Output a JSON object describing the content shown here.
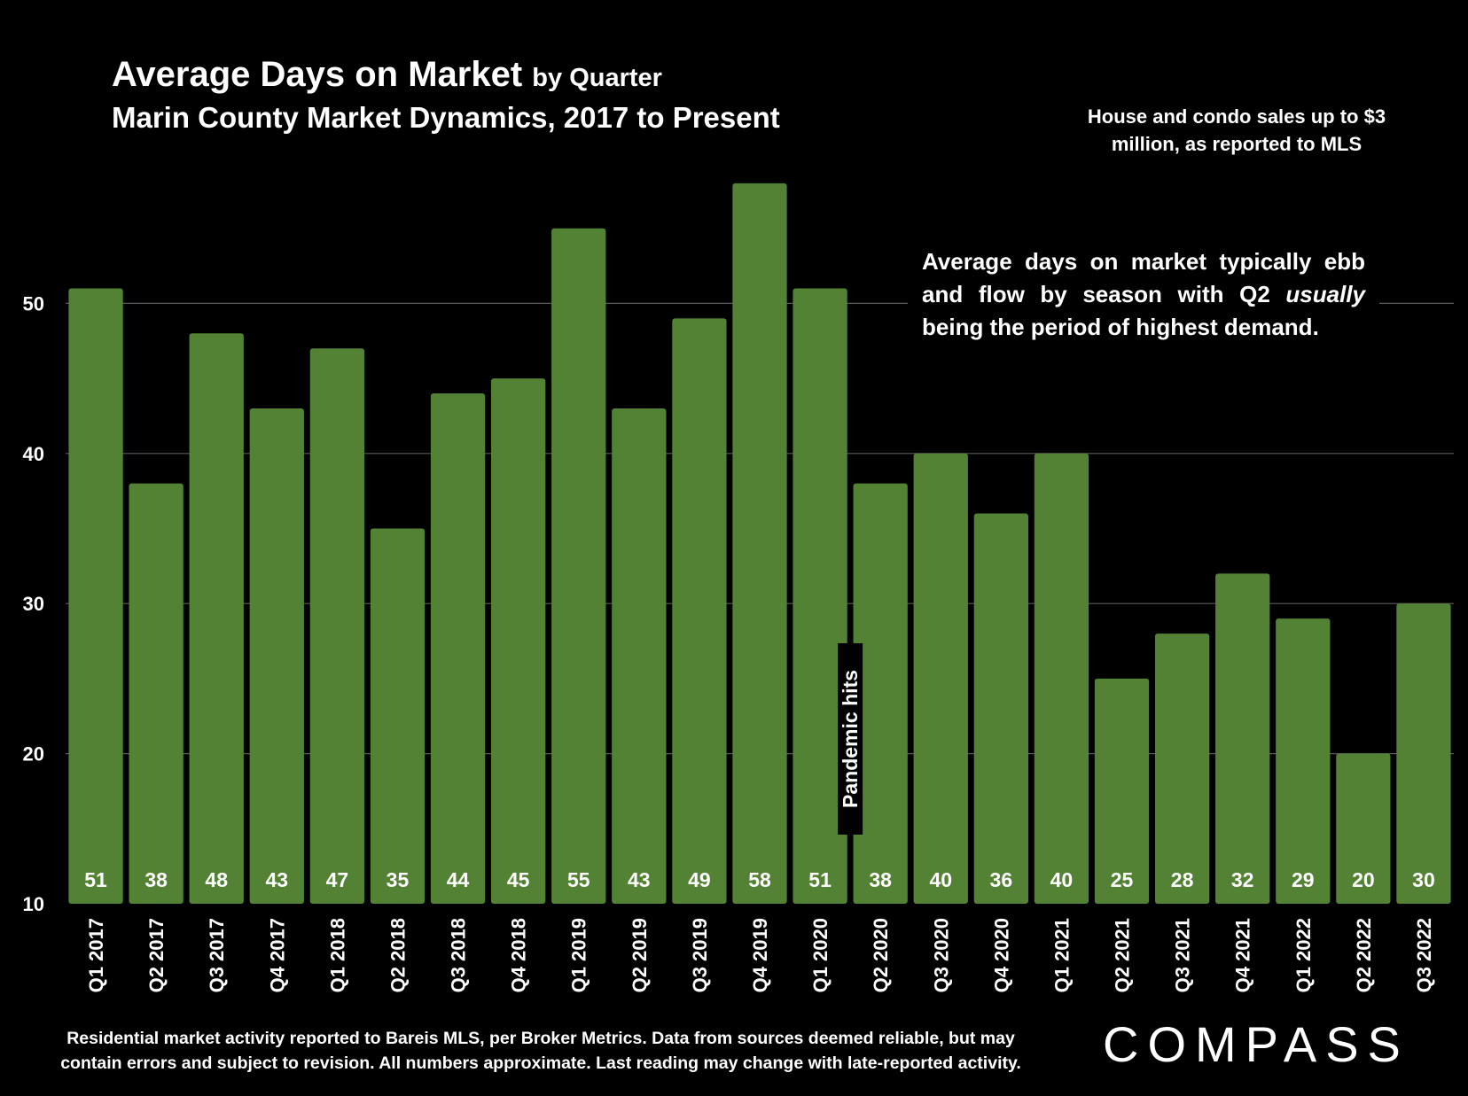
{
  "header": {
    "title_main": "Average Days on Market",
    "title_suffix": "by Quarter",
    "subtitle": "Marin County Market Dynamics, 2017 to Present",
    "scope_note": "House and condo sales up to $3 million, as reported to MLS"
  },
  "callout": {
    "text_before": "Average days on market typically ebb and flow by season with Q2 ",
    "text_emphasis": "usually",
    "text_after": " being the period of highest demand."
  },
  "footer": {
    "note": "Residential market activity reported to Bareis MLS, per Broker Metrics. Data from sources deemed reliable, but may contain errors and subject to revision. All numbers approximate. Last reading may change with late-reported activity."
  },
  "brand": {
    "logo_text": "COMPASS",
    "logo_icon": "compass-o-slash-glyph"
  },
  "colors": {
    "background": "#000000",
    "bar": "#548235",
    "gridline": "#5a5a5a",
    "text": "#ffffff"
  },
  "chart_data": {
    "type": "bar",
    "title": "Average Days on Market",
    "categories": [
      "Q1 2017",
      "Q2 2017",
      "Q3 2017",
      "Q4 2017",
      "Q1 2018",
      "Q2 2018",
      "Q3 2018",
      "Q4 2018",
      "Q1 2019",
      "Q2 2019",
      "Q3 2019",
      "Q4 2019",
      "Q1 2020",
      "Q2 2020",
      "Q3 2020",
      "Q4 2020",
      "Q1 2021",
      "Q2 2021",
      "Q3 2021",
      "Q4 2021",
      "Q1 2022",
      "Q2 2022",
      "Q3 2022"
    ],
    "values": [
      51,
      38,
      48,
      43,
      47,
      35,
      44,
      45,
      55,
      43,
      49,
      58,
      51,
      38,
      40,
      36,
      40,
      25,
      28,
      32,
      29,
      20,
      30
    ],
    "data_labels": [
      "51",
      "38",
      "48",
      "43",
      "47",
      "35",
      "44",
      "45",
      "55",
      "43",
      "49",
      "58",
      "51",
      "38",
      "40",
      "36",
      "40",
      "25",
      "28",
      "32",
      "29",
      "20",
      "30"
    ],
    "ylim": [
      10,
      60
    ],
    "yticks": [
      10,
      20,
      30,
      40,
      50
    ],
    "ytick_labels": [
      "10",
      "20",
      "30",
      "40",
      "50"
    ],
    "grid": "horizontal",
    "legend": "none",
    "annotations": [
      {
        "text": "Pandemic hits",
        "between": [
          "Q1 2020",
          "Q2 2020"
        ]
      }
    ]
  }
}
